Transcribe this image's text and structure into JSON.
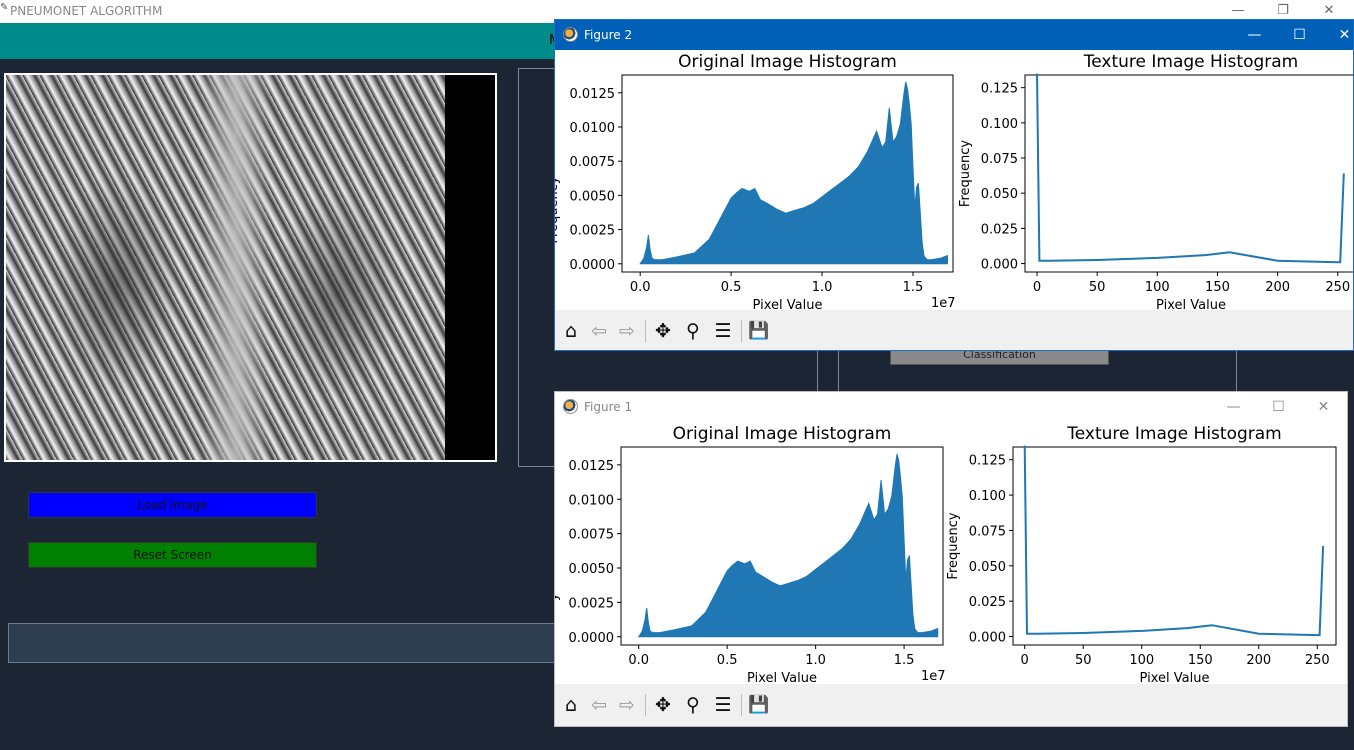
{
  "app": {
    "title": "PNEUMONET ALGORITHM",
    "teal_fragment": "M",
    "minimize": "—",
    "restore": "❐",
    "close": "✕"
  },
  "buttons": {
    "load_image": "Load Image",
    "reset_screen": "Reset Screen",
    "classification": "Classification"
  },
  "figures": [
    {
      "window_title": "Figure 2",
      "controls": {
        "minimize": "—",
        "maximize": "☐",
        "close": "✕"
      },
      "left_ylabel_fragment": "Frequency"
    },
    {
      "window_title": "Figure 1",
      "controls": {
        "minimize": "—",
        "maximize": "☐",
        "close": "✕"
      },
      "left_ylabel_fragment": "y"
    }
  ],
  "toolbar_icons": [
    "home-icon",
    "back-arrow-icon",
    "forward-arrow-icon",
    "pan-icon",
    "zoom-icon",
    "configure-subplots-icon",
    "save-icon"
  ],
  "toolbar_glyphs": {
    "home": "⌂",
    "back": "⇦",
    "forward": "⇨",
    "pan": "✥",
    "zoom": "⚲",
    "configure": "☰",
    "save": "💾"
  },
  "chart_data": [
    {
      "type": "area",
      "title": "Original Image Histogram",
      "xlabel": "Pixel Value",
      "ylabel": "",
      "x_offset_text": "1e7",
      "xlim": [
        -0.1,
        1.72
      ],
      "ylim": [
        -0.0006,
        0.0138
      ],
      "x_ticks": [
        0.0,
        0.5,
        1.0,
        1.5
      ],
      "x_tick_labels": [
        "0.0",
        "0.5",
        "1.0",
        "1.5"
      ],
      "y_ticks": [
        0.0,
        0.0025,
        0.005,
        0.0075,
        0.01,
        0.0125
      ],
      "y_tick_labels": [
        "0.0000",
        "0.0025",
        "0.0050",
        "0.0075",
        "0.0100",
        "0.0125"
      ],
      "color": "#1f77b4",
      "x": [
        0.0,
        0.02,
        0.035,
        0.045,
        0.055,
        0.065,
        0.08,
        0.12,
        0.2,
        0.3,
        0.38,
        0.42,
        0.46,
        0.5,
        0.53,
        0.56,
        0.6,
        0.63,
        0.66,
        0.7,
        0.75,
        0.8,
        0.85,
        0.9,
        0.95,
        1.0,
        1.05,
        1.1,
        1.15,
        1.2,
        1.25,
        1.3,
        1.33,
        1.35,
        1.37,
        1.39,
        1.41,
        1.43,
        1.44,
        1.45,
        1.46,
        1.47,
        1.48,
        1.49,
        1.5,
        1.51,
        1.52,
        1.53,
        1.54,
        1.55,
        1.56,
        1.57,
        1.58,
        1.6,
        1.65,
        1.69
      ],
      "values": [
        0.0,
        0.0004,
        0.0012,
        0.0021,
        0.001,
        0.0004,
        0.0003,
        0.0003,
        0.0005,
        0.0008,
        0.0018,
        0.0028,
        0.0038,
        0.0048,
        0.0052,
        0.0055,
        0.0053,
        0.0055,
        0.0047,
        0.0044,
        0.004,
        0.0037,
        0.0039,
        0.0041,
        0.0044,
        0.0049,
        0.0054,
        0.0059,
        0.0064,
        0.0071,
        0.0082,
        0.0097,
        0.0085,
        0.0089,
        0.0114,
        0.0089,
        0.0093,
        0.0102,
        0.0113,
        0.0124,
        0.0133,
        0.0128,
        0.0116,
        0.0102,
        0.007,
        0.0041,
        0.0056,
        0.0059,
        0.0037,
        0.0016,
        0.0006,
        0.0004,
        0.0003,
        0.0003,
        0.0004,
        0.0006
      ]
    },
    {
      "type": "line",
      "title": "Texture Image Histogram",
      "xlabel": "Pixel Value",
      "ylabel": "Frequency",
      "xlim": [
        -10,
        266
      ],
      "ylim": [
        -0.006,
        0.134
      ],
      "x_ticks": [
        0,
        50,
        100,
        150,
        200,
        250
      ],
      "x_tick_labels": [
        "0",
        "50",
        "100",
        "150",
        "200",
        "250"
      ],
      "y_ticks": [
        0.0,
        0.025,
        0.05,
        0.075,
        0.1,
        0.125
      ],
      "y_tick_labels": [
        "0.000",
        "0.025",
        "0.050",
        "0.075",
        "0.100",
        "0.125"
      ],
      "color": "#1f77b4",
      "x": [
        0,
        2,
        10,
        50,
        100,
        140,
        160,
        200,
        250,
        252,
        255
      ],
      "values": [
        0.135,
        0.002,
        0.002,
        0.0025,
        0.004,
        0.006,
        0.008,
        0.002,
        0.001,
        0.001,
        0.064
      ]
    }
  ]
}
